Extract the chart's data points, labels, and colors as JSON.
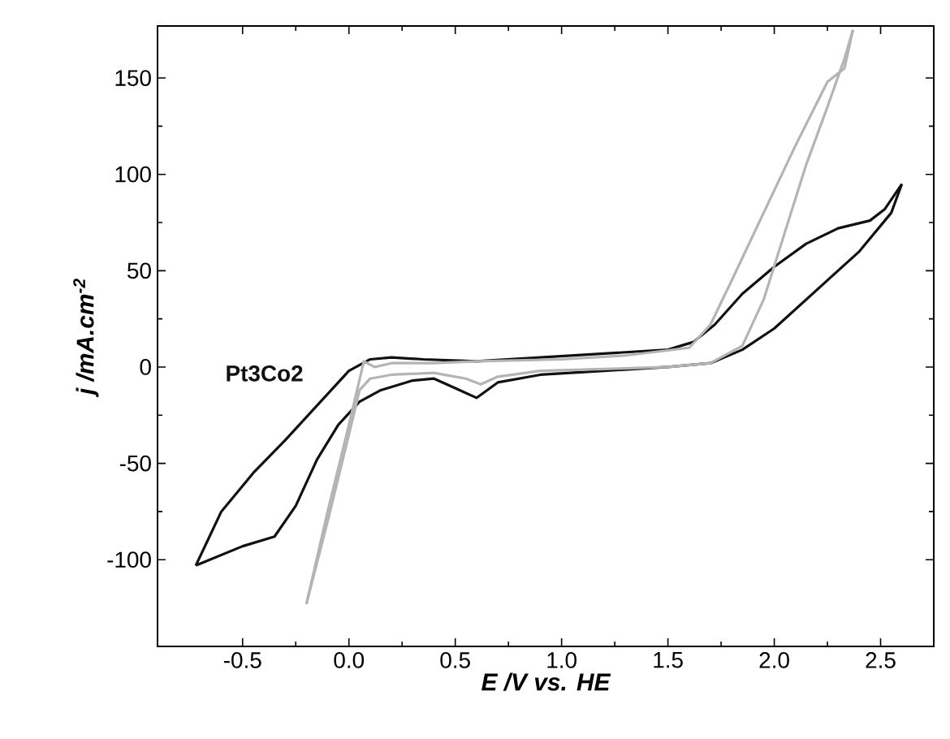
{
  "chart_data": {
    "type": "line",
    "xlabel": "E /V vs. HE",
    "ylabel": "j /mA.cm$^{-2}$",
    "xlim": [
      -0.9,
      2.75
    ],
    "ylim": [
      -145,
      177
    ],
    "xticks": [
      {
        "value": -0.5,
        "label": "-0.5"
      },
      {
        "value": 0,
        "label": "0.0"
      },
      {
        "value": 0.5,
        "label": "0.5"
      },
      {
        "value": 1,
        "label": "1.0"
      },
      {
        "value": 1.5,
        "label": "1.5"
      },
      {
        "value": 2,
        "label": "2.0"
      },
      {
        "value": 2.5,
        "label": "2.5"
      }
    ],
    "yticks": [
      -100,
      -50,
      0,
      50,
      100,
      150
    ],
    "grid": false,
    "legend": false,
    "marker": "none",
    "line_style": "solid",
    "series": [
      {
        "name": "Pt3Co2",
        "color": "#111111",
        "x": [
          -0.72,
          -0.6,
          -0.45,
          -0.3,
          -0.15,
          0.0,
          0.1,
          0.2,
          0.35,
          0.6,
          0.9,
          1.2,
          1.5,
          1.62,
          1.72,
          1.85,
          2.0,
          2.15,
          2.3,
          2.45,
          2.52,
          2.6
        ],
        "values": [
          -103,
          -75,
          -55,
          -38,
          -20,
          -2,
          4,
          5,
          4,
          3,
          5,
          7,
          9,
          13,
          22,
          38,
          52,
          64,
          72,
          76,
          82,
          95
        ]
      },
      {
        "color": "#111111",
        "x": [
          -0.72,
          -0.5,
          -0.35,
          -0.25,
          -0.15,
          -0.05,
          0.05,
          0.15,
          0.3,
          0.4,
          0.5,
          0.6,
          0.7,
          0.9,
          1.2,
          1.5,
          1.7,
          1.85,
          2.0,
          2.2,
          2.4,
          2.55,
          2.6
        ],
        "values": [
          -103,
          -93,
          -88,
          -72,
          -48,
          -30,
          -18,
          -12,
          -7,
          -6,
          -11,
          -16,
          -8,
          -4,
          -2,
          0,
          2,
          9,
          20,
          40,
          60,
          80,
          95
        ]
      },
      {
        "color": "#b4b4b4",
        "x": [
          -0.2,
          -0.1,
          0.0,
          0.07,
          0.12,
          0.2,
          0.4,
          0.6,
          1.0,
          1.3,
          1.6,
          1.7,
          1.8,
          1.95,
          2.1,
          2.25,
          2.33,
          2.37
        ],
        "values": [
          -123,
          -75,
          -30,
          3,
          0,
          2,
          2,
          3,
          4,
          6,
          10,
          22,
          45,
          80,
          115,
          148,
          155,
          175
        ]
      },
      {
        "color": "#b4b4b4",
        "x": [
          -0.2,
          -0.1,
          0.0,
          0.05,
          0.1,
          0.2,
          0.4,
          0.55,
          0.62,
          0.7,
          0.9,
          1.2,
          1.5,
          1.7,
          1.85,
          1.95,
          2.05,
          2.15,
          2.25,
          2.33,
          2.37
        ],
        "values": [
          -123,
          -80,
          -35,
          -12,
          -6,
          -4,
          -3,
          -6,
          -9,
          -5,
          -2,
          -1,
          0,
          2,
          11,
          35,
          70,
          105,
          135,
          160,
          175
        ]
      }
    ]
  }
}
